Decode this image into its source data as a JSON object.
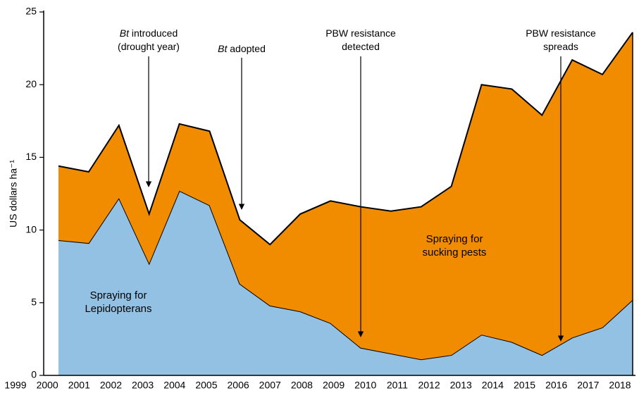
{
  "chart_data": {
    "type": "area",
    "y_label": "US dollars ha⁻¹",
    "categories": [
      "1999",
      "2000",
      "2001",
      "2002",
      "2003",
      "2004",
      "2005",
      "2006",
      "2007",
      "2008",
      "2009",
      "2010",
      "2011",
      "2012",
      "2013",
      "2014",
      "2015",
      "2016",
      "2017",
      "2018"
    ],
    "series": [
      {
        "name": "Spraying for Lepidopterans",
        "color": "#92c1e4",
        "values": [
          9.3,
          9.1,
          12.2,
          7.7,
          12.7,
          11.7,
          6.3,
          4.8,
          4.4,
          3.6,
          1.9,
          1.5,
          1.1,
          1.4,
          2.8,
          2.3,
          1.4,
          2.6,
          3.3,
          5.2
        ]
      },
      {
        "name": "Spraying for sucking pests",
        "color": "#f18c00",
        "values": [
          5.1,
          4.9,
          5.0,
          3.4,
          4.6,
          5.1,
          4.4,
          4.2,
          6.7,
          8.4,
          9.7,
          9.8,
          10.5,
          11.6,
          17.2,
          17.4,
          16.5,
          19.1,
          17.4,
          18.4
        ]
      }
    ],
    "stacked": true,
    "ylim": [
      0,
      25
    ],
    "yticks": [
      0,
      5,
      10,
      15,
      20,
      25
    ],
    "annotations": [
      {
        "prefix": "Bt",
        "lines": [
          "introduced",
          "(drought year)"
        ]
      },
      {
        "prefix": "Bt",
        "lines": [
          "adopted"
        ]
      },
      {
        "lines": [
          "PBW resistance",
          "detected"
        ]
      },
      {
        "lines": [
          "PBW resistance",
          "spreads"
        ]
      }
    ]
  }
}
